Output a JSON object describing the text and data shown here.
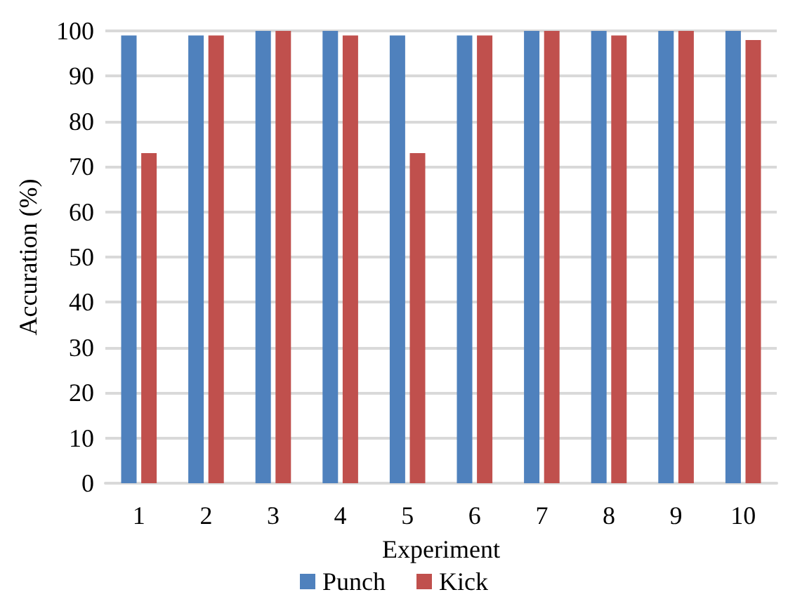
{
  "chart_data": {
    "type": "bar",
    "xlabel": "Experiment",
    "ylabel": "Accuration (%)",
    "categories": [
      "1",
      "2",
      "3",
      "4",
      "5",
      "6",
      "7",
      "8",
      "9",
      "10"
    ],
    "series": [
      {
        "name": "Punch",
        "color": "#4f81bd",
        "values": [
          99,
          99,
          100,
          100,
          99,
          99,
          100,
          100,
          100,
          100
        ]
      },
      {
        "name": "Kick",
        "color": "#c0504d",
        "values": [
          73,
          99,
          100,
          99,
          73,
          99,
          100,
          99,
          100,
          98
        ]
      }
    ],
    "ylim": [
      0,
      100
    ],
    "yticks": [
      0,
      10,
      20,
      30,
      40,
      50,
      60,
      70,
      80,
      90,
      100
    ],
    "grid": "y",
    "legend": "bottom"
  }
}
